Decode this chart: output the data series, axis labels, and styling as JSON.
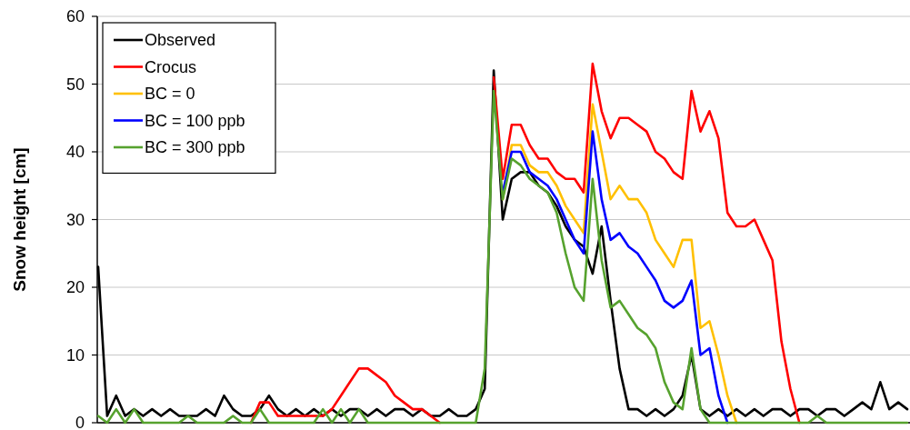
{
  "chart_data": {
    "type": "line",
    "ylabel": "Snow height [cm]",
    "categories": [
      null,
      null,
      null,
      null,
      null,
      null,
      null,
      null,
      null,
      null,
      null,
      null,
      null,
      null,
      null,
      null,
      null,
      null,
      null,
      null,
      null,
      null,
      null,
      null,
      null,
      null,
      null,
      null,
      null,
      null,
      null,
      null,
      null,
      null,
      null,
      null,
      null,
      null,
      null,
      null,
      null,
      null,
      null,
      null,
      null,
      null,
      null,
      null,
      null,
      null,
      null,
      null,
      null,
      null,
      null,
      null,
      null,
      null,
      null,
      null,
      null,
      null,
      null,
      null,
      null,
      null,
      null,
      null,
      null,
      null,
      null,
      null,
      null,
      null,
      null,
      null,
      null,
      null,
      null,
      null,
      null,
      null,
      null,
      null,
      null,
      null,
      null,
      null,
      null,
      null,
      null
    ],
    "ylim": [
      0,
      60
    ],
    "yticks": [
      0,
      10,
      20,
      30,
      40,
      50,
      60
    ],
    "grid": "y",
    "legend": "top left",
    "tick_labels": "y",
    "marker": "none",
    "line_style": "solid",
    "series": [
      {
        "name": "Observed",
        "color": "#000000",
        "values": [
          23,
          1,
          4,
          1,
          2,
          1,
          2,
          1,
          2,
          1,
          1,
          1,
          2,
          1,
          4,
          2,
          1,
          1,
          2,
          4,
          2,
          1,
          2,
          1,
          2,
          1,
          2,
          1,
          2,
          2,
          1,
          2,
          1,
          2,
          2,
          1,
          2,
          1,
          1,
          2,
          1,
          1,
          2,
          5,
          52,
          30,
          36,
          37,
          37,
          35,
          34,
          32,
          29,
          27,
          26,
          22,
          29,
          18,
          8,
          2,
          2,
          1,
          2,
          1,
          2,
          4,
          10,
          2,
          1,
          2,
          1,
          2,
          1,
          2,
          1,
          2,
          2,
          1,
          2,
          2,
          1,
          2,
          2,
          1,
          2,
          3,
          2,
          6,
          2,
          3,
          2
        ]
      },
      {
        "name": "Crocus",
        "color": "#ff0000",
        "values": [
          null,
          null,
          null,
          null,
          null,
          null,
          null,
          null,
          null,
          null,
          null,
          null,
          null,
          null,
          null,
          null,
          null,
          0,
          3,
          3,
          1,
          1,
          1,
          1,
          1,
          1,
          2,
          4,
          6,
          8,
          8,
          7,
          6,
          4,
          3,
          2,
          2,
          1,
          0,
          null,
          null,
          null,
          null,
          null,
          51,
          36,
          44,
          44,
          41,
          39,
          39,
          37,
          36,
          36,
          34,
          53,
          46,
          42,
          45,
          45,
          44,
          43,
          40,
          39,
          37,
          36,
          49,
          43,
          46,
          42,
          31,
          29,
          29,
          30,
          27,
          24,
          12,
          5,
          0,
          null,
          null,
          null,
          null,
          null,
          null,
          null,
          null,
          null,
          null,
          null,
          null
        ]
      },
      {
        "name": "BC = 0",
        "color": "#ffc000",
        "values": [
          null,
          null,
          null,
          null,
          null,
          null,
          null,
          null,
          null,
          null,
          null,
          null,
          null,
          null,
          null,
          null,
          null,
          null,
          null,
          null,
          null,
          null,
          null,
          null,
          null,
          null,
          null,
          null,
          null,
          null,
          null,
          null,
          null,
          null,
          null,
          null,
          null,
          null,
          null,
          null,
          null,
          null,
          null,
          null,
          null,
          33,
          41,
          41,
          38,
          37,
          37,
          35,
          32,
          30,
          28,
          47,
          40,
          33,
          35,
          33,
          33,
          31,
          27,
          25,
          23,
          27,
          27,
          14,
          15,
          10,
          4,
          0,
          null,
          null,
          null,
          null,
          null,
          null,
          null,
          null,
          null,
          null,
          null,
          null,
          null,
          null,
          null,
          null,
          null,
          null,
          null
        ]
      },
      {
        "name": "BC = 100 ppb",
        "color": "#0000ff",
        "values": [
          null,
          null,
          null,
          null,
          null,
          null,
          null,
          null,
          null,
          null,
          null,
          null,
          null,
          null,
          null,
          null,
          null,
          null,
          null,
          null,
          null,
          null,
          null,
          null,
          null,
          null,
          null,
          null,
          null,
          null,
          null,
          null,
          null,
          null,
          null,
          null,
          null,
          null,
          null,
          null,
          null,
          null,
          null,
          null,
          null,
          34,
          40,
          40,
          37,
          36,
          35,
          33,
          30,
          27,
          25,
          43,
          33,
          27,
          28,
          26,
          25,
          23,
          21,
          18,
          17,
          18,
          21,
          10,
          11,
          4,
          0,
          null,
          null,
          null,
          null,
          null,
          null,
          null,
          null,
          null,
          null,
          null,
          null,
          null,
          null,
          null,
          null,
          null,
          null,
          null,
          null
        ]
      },
      {
        "name": "BC = 300 ppb",
        "color": "#56a22e",
        "values": [
          1,
          0,
          2,
          0,
          2,
          0,
          0,
          0,
          0,
          0,
          1,
          0,
          0,
          0,
          0,
          1,
          0,
          0,
          2,
          0,
          0,
          0,
          0,
          0,
          0,
          2,
          0,
          2,
          0,
          2,
          0,
          0,
          0,
          0,
          0,
          0,
          0,
          0,
          0,
          0,
          0,
          0,
          0,
          8,
          49,
          33,
          39,
          38,
          36,
          35,
          34,
          31,
          25,
          20,
          18,
          36,
          24,
          17,
          18,
          16,
          14,
          13,
          11,
          6,
          3,
          2,
          11,
          2,
          0,
          0,
          0,
          0,
          0,
          0,
          0,
          0,
          0,
          0,
          0,
          0,
          1,
          0,
          0,
          0,
          0,
          0,
          0,
          0,
          0,
          0,
          0
        ]
      }
    ]
  }
}
